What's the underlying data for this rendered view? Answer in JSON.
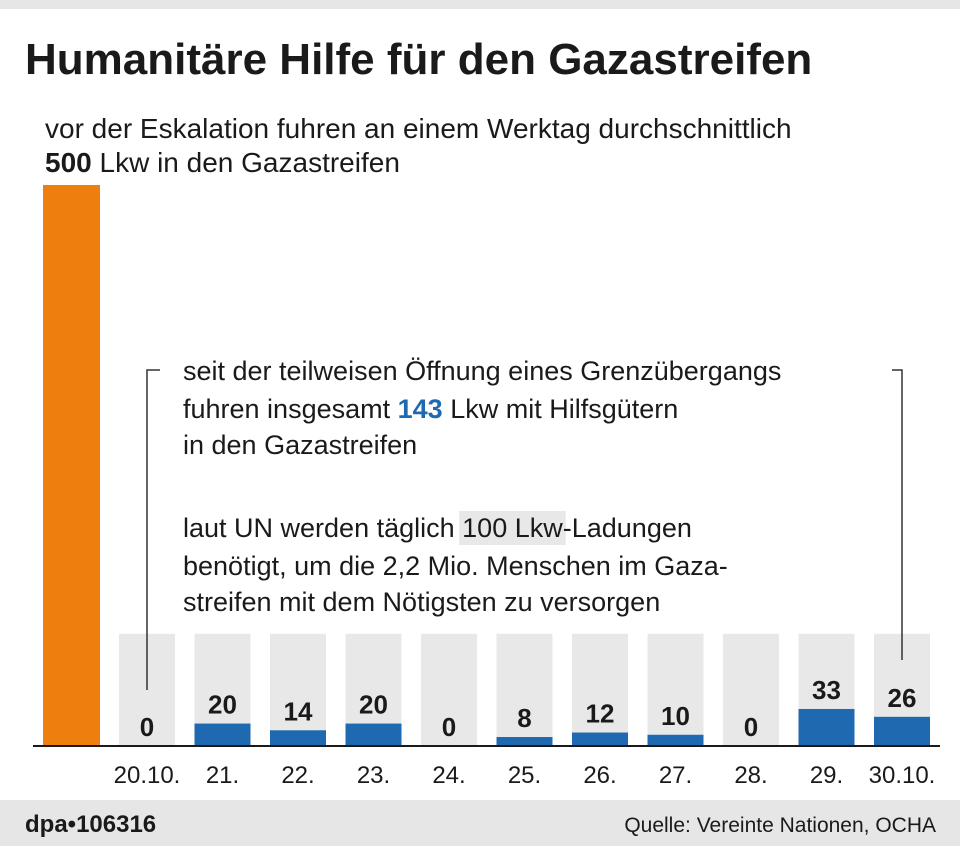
{
  "chart_data": {
    "type": "bar",
    "title": "Humanitäre Hilfe für den Gazastreifen",
    "subtitle": {
      "line1": "vor der Eskalation fuhren an einem Werktag durchschnittlich",
      "line2_post": "Lkw in den Gazastreifen"
    },
    "reference": {
      "value": 500,
      "color": "#ee7f0f"
    },
    "need": {
      "value": 100,
      "color": "#e8e8e8"
    },
    "categories": [
      "20.10.",
      "21.",
      "22.",
      "23.",
      "24.",
      "25.",
      "26.",
      "27.",
      "28.",
      "29.",
      "30.10."
    ],
    "values": [
      0,
      20,
      14,
      20,
      0,
      8,
      12,
      10,
      0,
      33,
      26
    ],
    "color": "#1f69b1",
    "ylim": [
      0,
      500
    ],
    "annotation_total": {
      "line1": "seit der teilweisen Öffnung eines Grenzübergangs",
      "line2_pre": "fuhren insgesamt",
      "total": 143,
      "line2_post": "Lkw mit Hilfsgütern",
      "line3": "in den Gazastreifen"
    },
    "annotation_need": {
      "line1_pre": "laut UN werden täglich",
      "unit": "Lkw",
      "line1_post": "-Ladungen",
      "line2": "benötigt, um die 2,2 Mio. Menschen im Gaza-",
      "line3": "streifen mit dem Nötigsten zu versorgen"
    },
    "credit": "dpa•106316",
    "source": "Quelle: Vereinte Nationen, OCHA"
  }
}
